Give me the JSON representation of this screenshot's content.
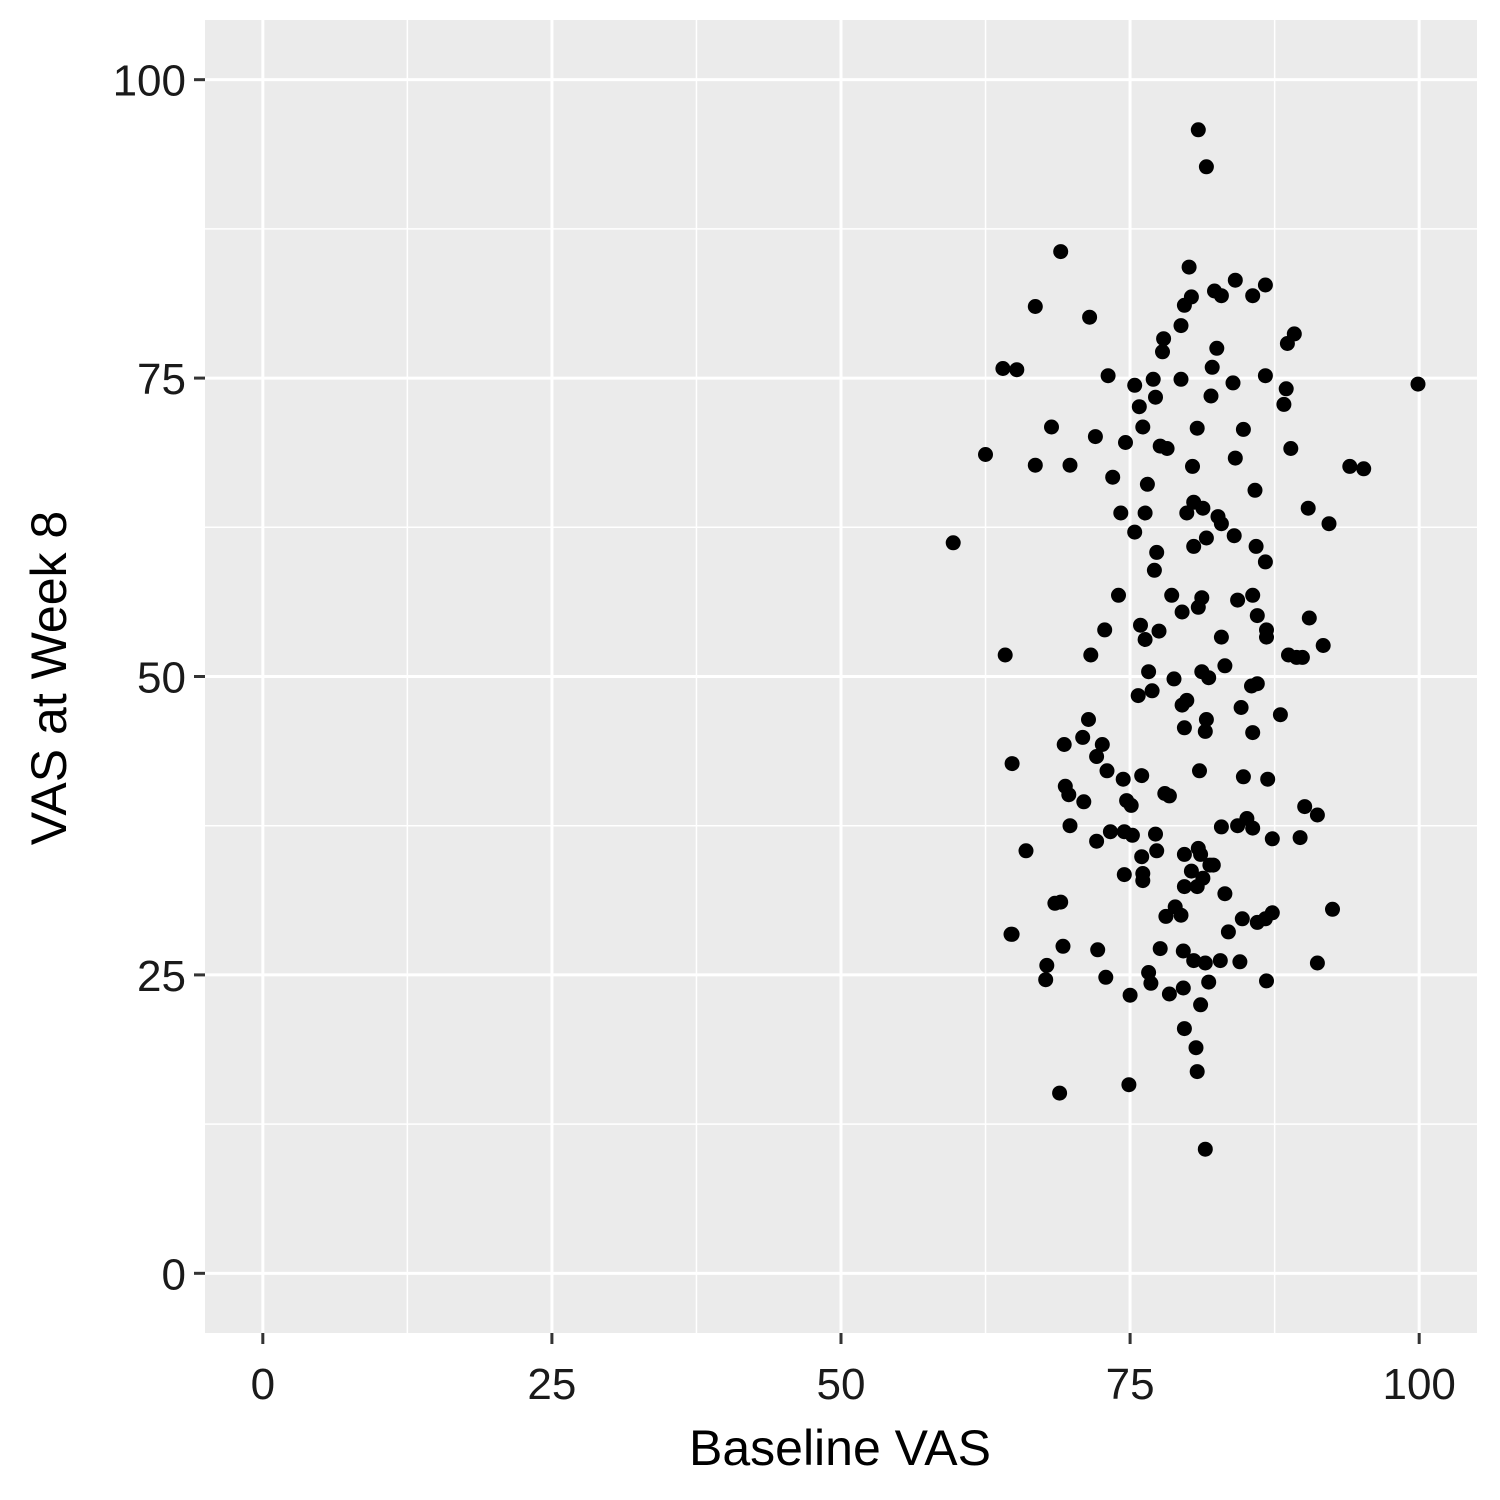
{
  "chart_data": {
    "type": "scatter",
    "xlabel": "Baseline VAS",
    "ylabel": "VAS at Week 8",
    "xlim": [
      -5,
      105
    ],
    "ylim": [
      -5,
      105
    ],
    "x_ticks": [
      0,
      25,
      50,
      75,
      100
    ],
    "y_ticks": [
      0,
      25,
      50,
      75,
      100
    ],
    "x_tick_labels": [
      "0",
      "25",
      "50",
      "75",
      "100"
    ],
    "y_tick_labels": [
      "0",
      "25",
      "50",
      "75",
      "100"
    ],
    "grid": true,
    "panel_color": "#EBEBEB",
    "grid_color": "#FFFFFF",
    "point_color": "#000000",
    "points": [
      [
        59.7,
        61.2
      ],
      [
        62.5,
        68.6
      ],
      [
        64.0,
        75.8
      ],
      [
        65.2,
        75.7
      ],
      [
        66.8,
        81.0
      ],
      [
        69.0,
        85.6
      ],
      [
        71.5,
        80.1
      ],
      [
        64.2,
        51.8
      ],
      [
        64.8,
        42.7
      ],
      [
        64.7,
        28.4
      ],
      [
        66.0,
        35.4
      ],
      [
        66.8,
        67.7
      ],
      [
        68.2,
        70.9
      ],
      [
        69.8,
        67.7
      ],
      [
        72.0,
        70.1
      ],
      [
        73.1,
        75.2
      ],
      [
        73.5,
        66.7
      ],
      [
        74.2,
        63.7
      ],
      [
        74.6,
        69.6
      ],
      [
        75.4,
        74.4
      ],
      [
        75.8,
        72.6
      ],
      [
        76.1,
        70.9
      ],
      [
        76.5,
        66.1
      ],
      [
        77.0,
        74.9
      ],
      [
        77.2,
        73.4
      ],
      [
        77.6,
        69.3
      ],
      [
        78.2,
        69.1
      ],
      [
        77.8,
        77.2
      ],
      [
        77.9,
        78.3
      ],
      [
        79.4,
        79.4
      ],
      [
        79.7,
        81.1
      ],
      [
        80.1,
        84.3
      ],
      [
        80.3,
        81.8
      ],
      [
        79.4,
        74.9
      ],
      [
        80.8,
        70.8
      ],
      [
        80.4,
        67.6
      ],
      [
        80.5,
        64.6
      ],
      [
        79.9,
        63.7
      ],
      [
        81.3,
        64.1
      ],
      [
        82.3,
        82.3
      ],
      [
        82.9,
        81.9
      ],
      [
        84.1,
        83.2
      ],
      [
        85.6,
        81.9
      ],
      [
        86.7,
        82.8
      ],
      [
        82.1,
        75.9
      ],
      [
        82.5,
        77.5
      ],
      [
        82.0,
        73.5
      ],
      [
        83.9,
        74.6
      ],
      [
        84.8,
        70.7
      ],
      [
        84.1,
        68.3
      ],
      [
        86.7,
        75.2
      ],
      [
        88.5,
        74.1
      ],
      [
        88.3,
        72.8
      ],
      [
        88.9,
        69.1
      ],
      [
        88.6,
        77.9
      ],
      [
        89.2,
        78.7
      ],
      [
        85.8,
        65.6
      ],
      [
        82.6,
        63.4
      ],
      [
        82.9,
        62.8
      ],
      [
        84.0,
        61.8
      ],
      [
        85.9,
        60.9
      ],
      [
        86.7,
        59.6
      ],
      [
        90.4,
        64.1
      ],
      [
        92.2,
        62.8
      ],
      [
        94.0,
        67.6
      ],
      [
        95.2,
        67.4
      ],
      [
        99.9,
        74.5
      ],
      [
        80.9,
        95.8
      ],
      [
        81.6,
        92.7
      ],
      [
        75.4,
        62.1
      ],
      [
        76.3,
        63.7
      ],
      [
        77.3,
        60.4
      ],
      [
        77.1,
        58.9
      ],
      [
        80.5,
        60.9
      ],
      [
        81.6,
        61.6
      ],
      [
        74.0,
        56.8
      ],
      [
        72.8,
        53.9
      ],
      [
        71.6,
        51.8
      ],
      [
        75.9,
        54.3
      ],
      [
        76.3,
        53.1
      ],
      [
        77.5,
        53.8
      ],
      [
        78.6,
        56.8
      ],
      [
        79.5,
        55.4
      ],
      [
        80.9,
        55.8
      ],
      [
        81.2,
        56.6
      ],
      [
        76.6,
        50.4
      ],
      [
        76.9,
        48.8
      ],
      [
        75.7,
        48.4
      ],
      [
        78.8,
        49.8
      ],
      [
        79.5,
        47.6
      ],
      [
        79.9,
        48.0
      ],
      [
        81.2,
        50.4
      ],
      [
        81.8,
        49.9
      ],
      [
        82.9,
        53.3
      ],
      [
        83.2,
        50.9
      ],
      [
        84.3,
        56.4
      ],
      [
        85.6,
        56.8
      ],
      [
        86.0,
        55.1
      ],
      [
        86.8,
        53.9
      ],
      [
        86.8,
        53.3
      ],
      [
        85.5,
        49.2
      ],
      [
        86.0,
        49.4
      ],
      [
        84.6,
        47.4
      ],
      [
        85.6,
        45.3
      ],
      [
        88.0,
        46.8
      ],
      [
        88.7,
        51.8
      ],
      [
        89.4,
        51.6
      ],
      [
        89.9,
        51.6
      ],
      [
        90.5,
        54.9
      ],
      [
        91.7,
        52.6
      ],
      [
        71.4,
        46.4
      ],
      [
        70.9,
        44.9
      ],
      [
        69.3,
        44.3
      ],
      [
        72.1,
        43.3
      ],
      [
        72.6,
        44.3
      ],
      [
        73.0,
        42.1
      ],
      [
        74.4,
        41.4
      ],
      [
        76.0,
        41.7
      ],
      [
        79.7,
        45.7
      ],
      [
        81.6,
        46.4
      ],
      [
        81.5,
        45.4
      ],
      [
        81.0,
        42.1
      ],
      [
        69.4,
        40.8
      ],
      [
        69.7,
        40.1
      ],
      [
        71.0,
        39.5
      ],
      [
        74.7,
        39.6
      ],
      [
        75.1,
        39.2
      ],
      [
        78.0,
        40.2
      ],
      [
        78.4,
        40.0
      ],
      [
        84.8,
        41.6
      ],
      [
        86.9,
        41.4
      ],
      [
        69.8,
        37.5
      ],
      [
        72.1,
        36.2
      ],
      [
        73.3,
        37.0
      ],
      [
        74.5,
        37.0
      ],
      [
        75.2,
        36.7
      ],
      [
        77.2,
        36.8
      ],
      [
        77.3,
        35.4
      ],
      [
        76.0,
        34.9
      ],
      [
        76.1,
        33.5
      ],
      [
        76.1,
        32.9
      ],
      [
        74.5,
        33.4
      ],
      [
        79.7,
        35.1
      ],
      [
        80.3,
        33.7
      ],
      [
        80.9,
        35.6
      ],
      [
        81.1,
        35.1
      ],
      [
        81.3,
        33.1
      ],
      [
        81.9,
        34.2
      ],
      [
        82.2,
        34.2
      ],
      [
        80.8,
        32.4
      ],
      [
        79.7,
        32.4
      ],
      [
        82.9,
        37.4
      ],
      [
        84.3,
        37.5
      ],
      [
        85.1,
        38.1
      ],
      [
        85.6,
        37.3
      ],
      [
        87.3,
        36.4
      ],
      [
        89.7,
        36.5
      ],
      [
        90.1,
        39.1
      ],
      [
        91.2,
        38.4
      ],
      [
        69.0,
        31.1
      ],
      [
        68.5,
        31.0
      ],
      [
        78.9,
        30.7
      ],
      [
        78.1,
        29.9
      ],
      [
        79.4,
        30.0
      ],
      [
        83.2,
        31.8
      ],
      [
        83.5,
        28.6
      ],
      [
        84.7,
        29.7
      ],
      [
        86.0,
        29.4
      ],
      [
        86.7,
        29.7
      ],
      [
        87.3,
        30.2
      ],
      [
        92.5,
        30.5
      ],
      [
        64.8,
        28.4
      ],
      [
        69.2,
        27.4
      ],
      [
        72.2,
        27.1
      ],
      [
        67.8,
        25.8
      ],
      [
        67.7,
        24.6
      ],
      [
        72.9,
        24.8
      ],
      [
        76.6,
        25.2
      ],
      [
        76.8,
        24.3
      ],
      [
        77.6,
        27.2
      ],
      [
        79.6,
        27.0
      ],
      [
        80.5,
        26.2
      ],
      [
        81.5,
        26.0
      ],
      [
        82.8,
        26.2
      ],
      [
        84.5,
        26.1
      ],
      [
        86.8,
        24.5
      ],
      [
        91.2,
        26.0
      ],
      [
        75.0,
        23.3
      ],
      [
        78.4,
        23.4
      ],
      [
        79.6,
        23.9
      ],
      [
        81.8,
        24.4
      ],
      [
        81.1,
        22.5
      ],
      [
        79.7,
        20.5
      ],
      [
        80.7,
        18.9
      ],
      [
        80.8,
        16.9
      ],
      [
        74.9,
        15.8
      ],
      [
        68.9,
        15.1
      ],
      [
        81.5,
        10.4
      ]
    ]
  }
}
